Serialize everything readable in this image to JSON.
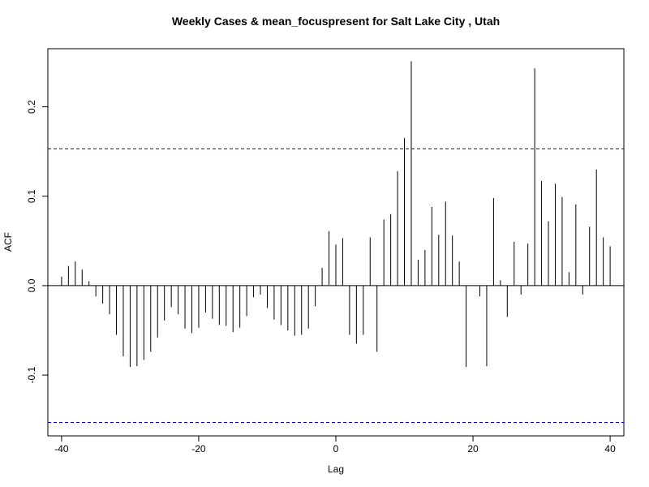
{
  "chart_data": {
    "type": "bar",
    "title": "Weekly Cases & mean_focuspresent for Salt Lake City , Utah",
    "xlabel": "Lag",
    "ylabel": "ACF",
    "xlim": [
      -42,
      42
    ],
    "ylim": [
      -0.168,
      0.265
    ],
    "x_ticks": [
      -40,
      -20,
      0,
      20,
      40
    ],
    "x_tick_labels": [
      "-40",
      "-20",
      "0",
      "20",
      "40"
    ],
    "y_ticks": [
      -0.1,
      0.0,
      0.1,
      0.2
    ],
    "y_tick_labels": [
      "-0.1",
      "0.0",
      "0.1",
      "0.2"
    ],
    "confidence_bound": 0.153,
    "colors": {
      "bars": "#000000",
      "confidence_lines": "#0000cc",
      "zero_line": "#000000",
      "frame": "#000000"
    },
    "lags": [
      -40,
      -39,
      -38,
      -37,
      -36,
      -35,
      -34,
      -33,
      -32,
      -31,
      -30,
      -29,
      -28,
      -27,
      -26,
      -25,
      -24,
      -23,
      -22,
      -21,
      -20,
      -19,
      -18,
      -17,
      -16,
      -15,
      -14,
      -13,
      -12,
      -11,
      -10,
      -9,
      -8,
      -7,
      -6,
      -5,
      -4,
      -3,
      -2,
      -1,
      0,
      1,
      2,
      3,
      4,
      5,
      6,
      7,
      8,
      9,
      10,
      11,
      12,
      13,
      14,
      15,
      16,
      17,
      18,
      19,
      20,
      21,
      22,
      23,
      24,
      25,
      26,
      27,
      28,
      29,
      30,
      31,
      32,
      33,
      34,
      35,
      36,
      37,
      38,
      39,
      40
    ],
    "values": [
      0.01,
      0.022,
      0.027,
      0.018,
      0.005,
      -0.012,
      -0.02,
      -0.032,
      -0.055,
      -0.079,
      -0.091,
      -0.09,
      -0.083,
      -0.074,
      -0.058,
      -0.039,
      -0.024,
      -0.032,
      -0.048,
      -0.053,
      -0.047,
      -0.03,
      -0.037,
      -0.044,
      -0.045,
      -0.052,
      -0.047,
      -0.034,
      -0.013,
      -0.01,
      -0.025,
      -0.038,
      -0.044,
      -0.05,
      -0.056,
      -0.055,
      -0.048,
      -0.023,
      0.02,
      0.061,
      0.046,
      0.053,
      -0.055,
      -0.065,
      -0.055,
      0.054,
      -0.074,
      0.074,
      0.08,
      0.128,
      0.165,
      0.251,
      0.029,
      0.04,
      0.088,
      0.057,
      0.094,
      0.056,
      0.027,
      -0.091,
      0.0,
      -0.012,
      -0.09,
      0.098,
      0.006,
      -0.035,
      0.049,
      -0.01,
      0.047,
      0.243,
      0.117,
      0.072,
      0.114,
      0.099,
      0.015,
      0.091,
      -0.01,
      0.066,
      0.13,
      0.054,
      0.044
    ]
  }
}
